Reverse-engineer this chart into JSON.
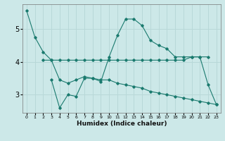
{
  "xlabel": "Humidex (Indice chaleur)",
  "background_color": "#cce8e8",
  "grid_color": "#b8d8d8",
  "line_color": "#1a7a6e",
  "xlim": [
    -0.5,
    23.5
  ],
  "ylim": [
    2.45,
    5.75
  ],
  "xticks": [
    0,
    1,
    2,
    3,
    4,
    5,
    6,
    7,
    8,
    9,
    10,
    11,
    12,
    13,
    14,
    15,
    16,
    17,
    18,
    19,
    20,
    21,
    22,
    23
  ],
  "yticks": [
    3,
    4,
    5
  ],
  "line1_x": [
    0,
    1,
    2,
    3,
    4,
    5,
    6,
    7,
    8,
    9,
    10,
    11,
    12,
    13,
    14,
    15,
    16,
    17,
    18,
    19,
    20,
    21,
    22,
    23
  ],
  "line1_y": [
    5.55,
    4.75,
    4.3,
    4.05,
    3.45,
    3.35,
    3.45,
    3.55,
    3.5,
    3.4,
    4.15,
    4.8,
    5.3,
    5.3,
    5.1,
    4.65,
    4.5,
    4.4,
    4.15,
    4.15,
    4.15,
    4.15,
    3.3,
    2.7
  ],
  "line2_x": [
    2,
    3,
    4,
    5,
    6,
    7,
    8,
    9,
    10,
    11,
    12,
    13,
    14,
    15,
    16,
    17,
    18,
    19,
    20,
    21,
    22
  ],
  "line2_y": [
    4.05,
    4.05,
    4.05,
    4.05,
    4.05,
    4.05,
    4.05,
    4.05,
    4.05,
    4.05,
    4.05,
    4.05,
    4.05,
    4.05,
    4.05,
    4.05,
    4.05,
    4.05,
    4.15,
    4.15,
    4.15
  ],
  "line3_x": [
    3,
    4,
    5,
    6,
    7,
    8,
    9,
    10,
    11,
    12,
    13,
    14,
    15,
    16,
    17,
    18,
    19,
    20,
    21,
    22,
    23
  ],
  "line3_y": [
    3.45,
    2.6,
    3.0,
    2.95,
    3.5,
    3.5,
    3.45,
    3.45,
    3.35,
    3.3,
    3.25,
    3.2,
    3.1,
    3.05,
    3.0,
    2.95,
    2.9,
    2.85,
    2.8,
    2.75,
    2.7
  ]
}
